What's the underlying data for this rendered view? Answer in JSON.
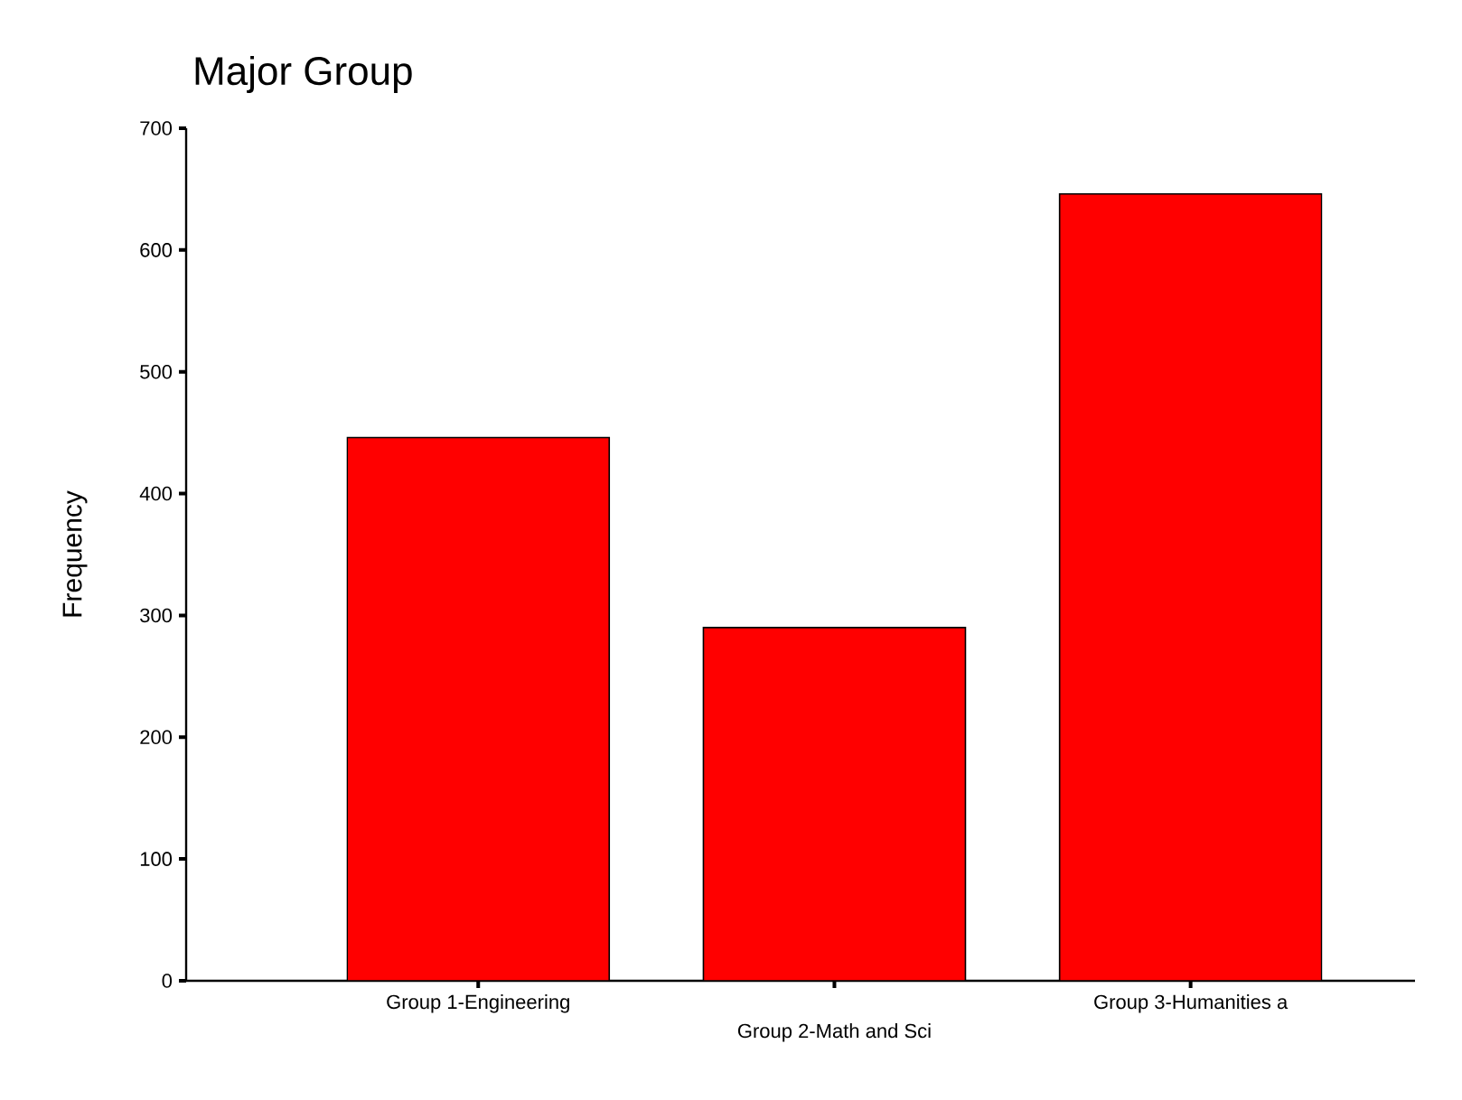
{
  "chart_data": {
    "type": "bar",
    "title": "Major Group",
    "ylabel": "Frequency",
    "categories": [
      "Group 1-Engineering",
      "Group 2-Math and Sci",
      "Group 3-Humanities a"
    ],
    "values": [
      446,
      290,
      646
    ],
    "color": "#ff0000",
    "ylim": [
      0,
      700
    ],
    "yticks": [
      0,
      100,
      200,
      300,
      400,
      500,
      600,
      700
    ],
    "grid": false
  }
}
